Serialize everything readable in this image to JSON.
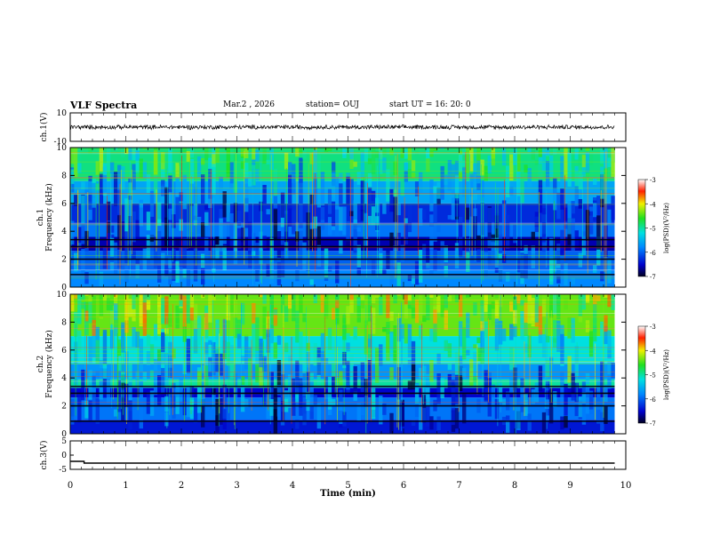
{
  "header": {
    "title": "VLF Spectra",
    "date": "Mar.2 , 2026",
    "station": "station= OUJ",
    "start": "start UT =  16: 20: 0"
  },
  "chart_data": [
    {
      "type": "line",
      "name": "ch1-waveform",
      "ylabel": "ch.1(V)",
      "ylim": [
        -10,
        10
      ],
      "yticks": [
        "10",
        "-10"
      ],
      "xlim": [
        0,
        10
      ],
      "series": [
        {
          "name": "ch.1",
          "baseline": 0,
          "noise_amplitude": 1.5
        }
      ]
    },
    {
      "type": "heatmap",
      "name": "ch1-spectrogram",
      "ylabel": "ch.1\nFrequency (kHz)",
      "ylim": [
        0,
        10
      ],
      "yticks": [
        "0",
        "2",
        "4",
        "6",
        "8",
        "10"
      ],
      "xlim": [
        0,
        10
      ],
      "data_end_min": 9.8,
      "colorbar": {
        "label": "log(PSD)(V²/Hz)",
        "range": [
          -7,
          -3
        ],
        "ticks": [
          "-3",
          "-4",
          "-5",
          "-6",
          "-7"
        ]
      },
      "bands_khz": [
        {
          "from": 0.0,
          "to": 1.2,
          "level": -5.8
        },
        {
          "from": 1.2,
          "to": 2.6,
          "level": -6.0
        },
        {
          "from": 2.6,
          "to": 3.6,
          "level": -6.6
        },
        {
          "from": 3.6,
          "to": 4.6,
          "level": -5.9
        },
        {
          "from": 4.6,
          "to": 6.0,
          "level": -6.3
        },
        {
          "from": 6.0,
          "to": 7.6,
          "level": -5.6
        },
        {
          "from": 7.6,
          "to": 10.0,
          "level": -4.9
        }
      ]
    },
    {
      "type": "heatmap",
      "name": "ch2-spectrogram",
      "ylabel": "ch.2\nFrequency (kHz)",
      "ylim": [
        0,
        10
      ],
      "yticks": [
        "0",
        "2",
        "4",
        "6",
        "8",
        "10"
      ],
      "xlim": [
        0,
        10
      ],
      "data_end_min": 9.8,
      "colorbar": {
        "label": "log(PSD)(V²/Hz)",
        "range": [
          -7,
          -3
        ],
        "ticks": [
          "-3",
          "-4",
          "-5",
          "-6",
          "-7"
        ]
      },
      "bands_khz": [
        {
          "from": 0.0,
          "to": 1.0,
          "level": -6.4
        },
        {
          "from": 1.0,
          "to": 2.6,
          "level": -5.9
        },
        {
          "from": 2.6,
          "to": 3.3,
          "level": -6.5
        },
        {
          "from": 3.3,
          "to": 3.9,
          "level": -5.0
        },
        {
          "from": 3.9,
          "to": 5.0,
          "level": -5.7
        },
        {
          "from": 5.0,
          "to": 7.0,
          "level": -5.2
        },
        {
          "from": 7.0,
          "to": 10.0,
          "level": -4.4
        }
      ]
    },
    {
      "type": "line",
      "name": "ch3-waveform",
      "ylabel": "ch.3(V)",
      "ylim": [
        -5,
        5
      ],
      "yticks": [
        "5",
        "0",
        "-5"
      ],
      "xlim": [
        0,
        10
      ],
      "series": [
        {
          "name": "ch.3",
          "points": [
            [
              0,
              -2.2
            ],
            [
              0.25,
              -2.2
            ],
            [
              0.25,
              -2.8
            ],
            [
              9.8,
              -2.8
            ]
          ]
        }
      ]
    }
  ],
  "xaxis": {
    "label": "Time  (min)",
    "ticks": [
      "0",
      "1",
      "2",
      "3",
      "4",
      "5",
      "6",
      "7",
      "8",
      "9",
      "10"
    ]
  }
}
